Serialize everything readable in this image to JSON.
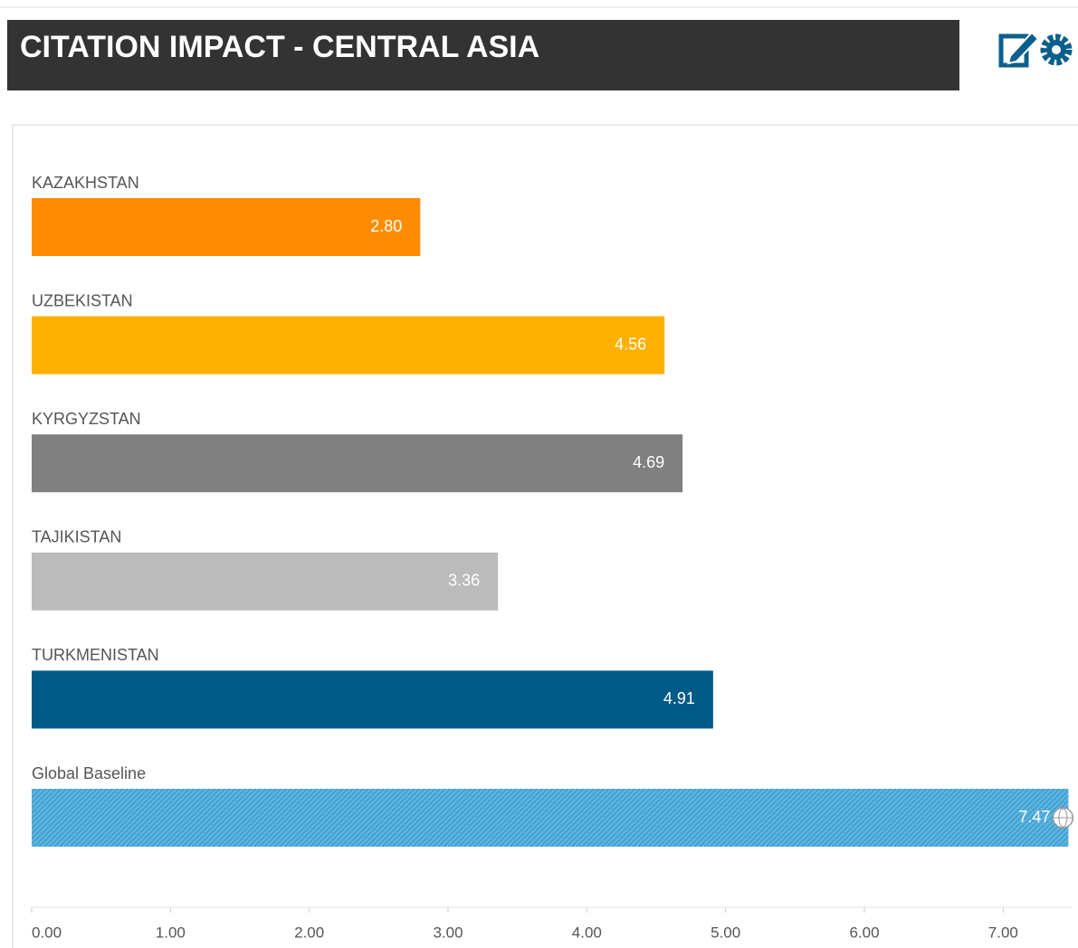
{
  "chart_data": {
    "type": "bar",
    "orientation": "horizontal",
    "title": "CITATION IMPACT - CENTRAL ASIA",
    "categories": [
      "KAZAKHSTAN",
      "UZBEKISTAN",
      "KYRGYZSTAN",
      "TAJIKISTAN",
      "TURKMENISTAN",
      "Global Baseline"
    ],
    "values": [
      2.8,
      4.56,
      4.69,
      3.36,
      4.91,
      7.47
    ],
    "value_labels": [
      "2.80",
      "4.56",
      "4.69",
      "3.36",
      "4.91",
      "7.47"
    ],
    "colors": [
      "#ff8c00",
      "#ffb000",
      "#808080",
      "#bbbbbb",
      "#005a87",
      "#4aa8d8"
    ],
    "xlim": [
      0,
      7.5
    ],
    "xticks": [
      {
        "value": 0,
        "label": "0.00"
      },
      {
        "value": 1,
        "label": "1.00"
      },
      {
        "value": 2,
        "label": "2.00"
      },
      {
        "value": 3,
        "label": "3.00"
      },
      {
        "value": 4,
        "label": "4.00"
      },
      {
        "value": 5,
        "label": "5.00"
      },
      {
        "value": 6,
        "label": "6.00"
      },
      {
        "value": 7,
        "label": "7.00"
      }
    ]
  }
}
